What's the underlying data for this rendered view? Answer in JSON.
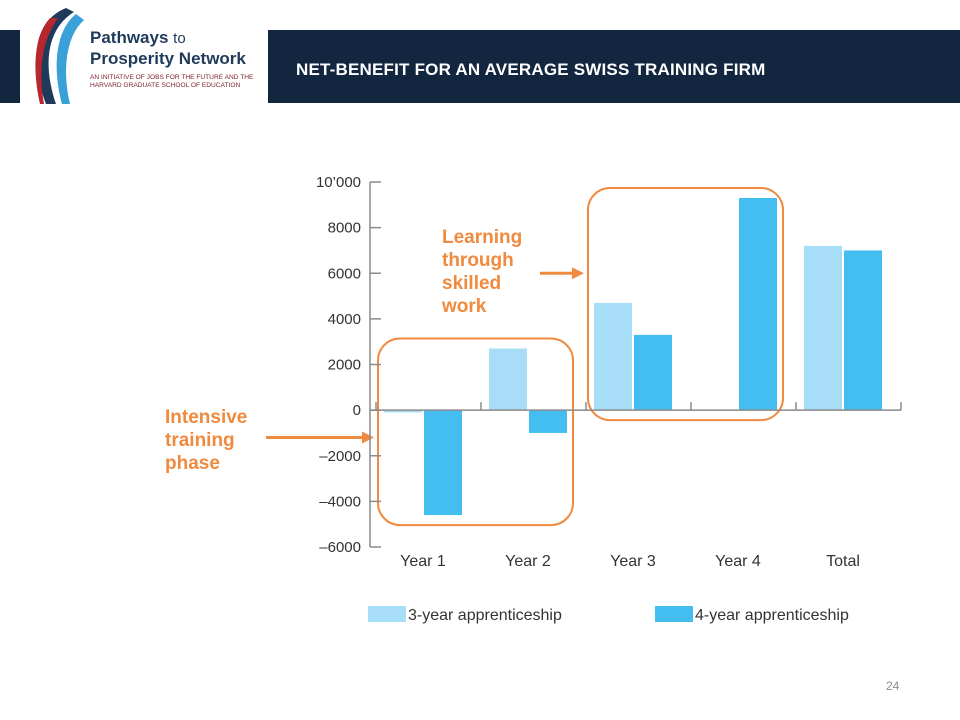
{
  "header": {
    "logo": {
      "line1_bold": "Pathways",
      "line1_rest": "to",
      "line2": "Prosperity Network",
      "subtitle": "AN INITIATIVE OF JOBS FOR THE FUTURE AND THE HARVARD GRADUATE SCHOOL OF EDUCATION"
    },
    "title": "NET-BENEFIT FOR AN AVERAGE SWISS TRAINING FIRM"
  },
  "chart_data": {
    "type": "bar",
    "title": "",
    "xlabel": "",
    "ylabel": "",
    "categories": [
      "Year 1",
      "Year 2",
      "Year 3",
      "Year 4",
      "Total"
    ],
    "series": [
      {
        "name": "3-year apprenticeship",
        "color": "#a8ddf7",
        "values": [
          -100,
          2700,
          4700,
          null,
          7200
        ]
      },
      {
        "name": "4-year apprenticeship",
        "color": "#44bdf0",
        "values": [
          -4600,
          -1000,
          3300,
          9300,
          7000
        ]
      }
    ],
    "ylim": [
      -6000,
      10000
    ],
    "yticks": [
      {
        "value": 10000,
        "label": "10’000"
      },
      {
        "value": 8000,
        "label": "8000"
      },
      {
        "value": 6000,
        "label": "6000"
      },
      {
        "value": 4000,
        "label": "4000"
      },
      {
        "value": 2000,
        "label": "2000"
      },
      {
        "value": 0,
        "label": "0"
      },
      {
        "value": -2000,
        "label": "–2000"
      },
      {
        "value": -4000,
        "label": "–4000"
      },
      {
        "value": -6000,
        "label": "–6000"
      }
    ],
    "grid": false,
    "legend_position": "bottom",
    "annotations": [
      {
        "lines": [
          "Intensive",
          "training",
          "phase"
        ],
        "target_categories": [
          "Year 1",
          "Year 2"
        ]
      },
      {
        "lines": [
          "Learning",
          "through",
          "skilled",
          "work"
        ],
        "target_categories": [
          "Year 3",
          "Year 4"
        ]
      }
    ],
    "highlight_color": "#f08a3e"
  },
  "footer": {
    "page_number": "24"
  }
}
